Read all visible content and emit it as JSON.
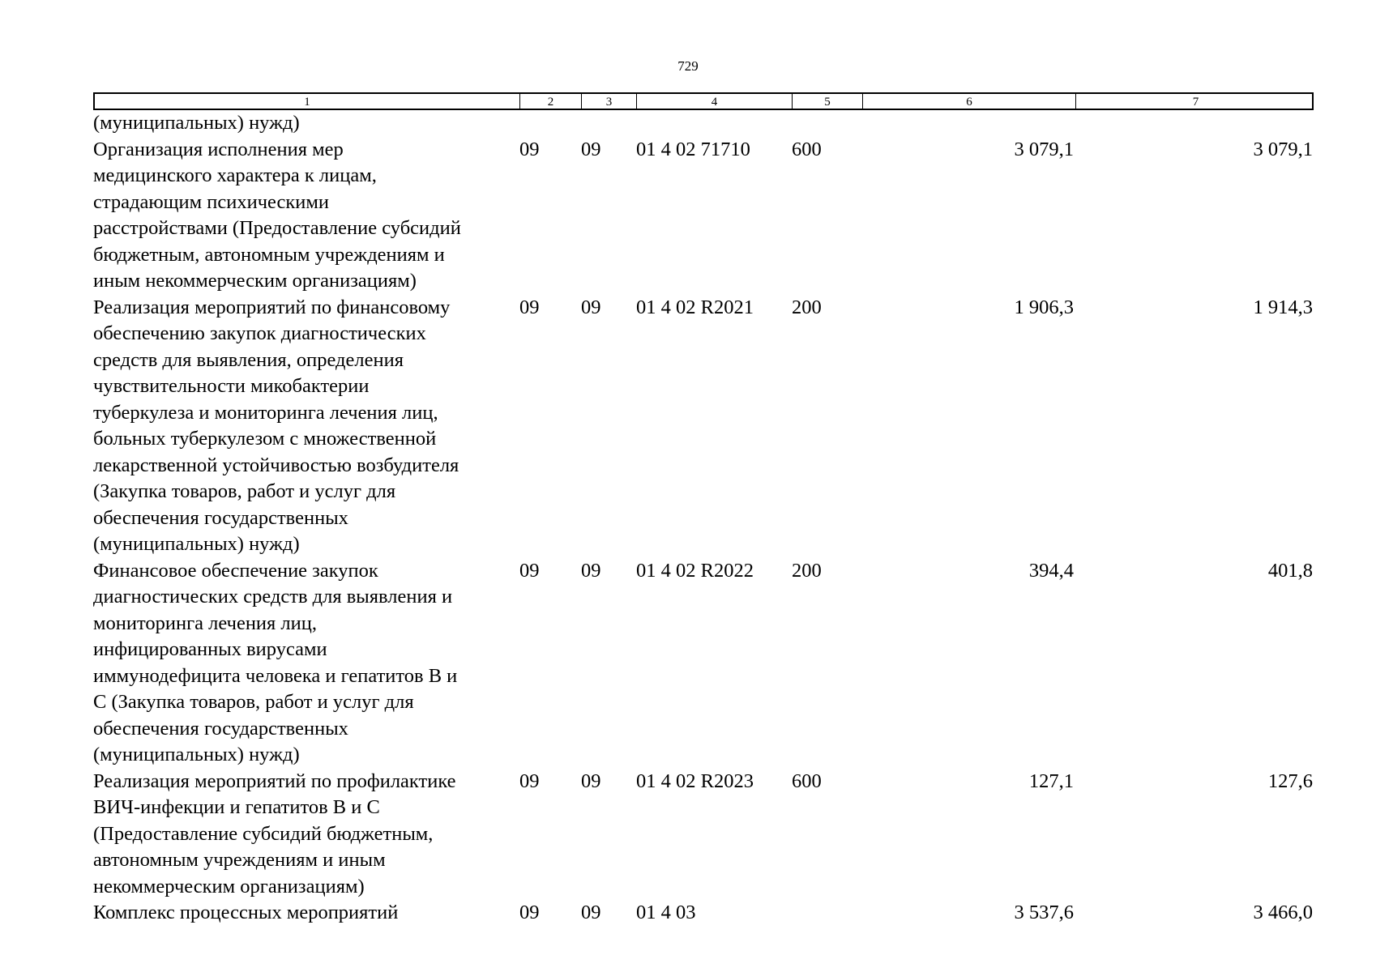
{
  "page_number": "729",
  "header": [
    "1",
    "2",
    "3",
    "4",
    "5",
    "6",
    "7"
  ],
  "rows": [
    {
      "desc": "(муниципальных) нужд)",
      "c2": "",
      "c3": "",
      "c4": "",
      "c5": "",
      "c6": "",
      "c7": ""
    },
    {
      "desc": "Организация исполнения мер\nмедицинского характера к лицам,\nстрадающим психическими\nрасстройствами (Предоставление субсидий\nбюджетным, автономным учреждениям и\nиным некоммерческим организациям)",
      "c2": "09",
      "c3": "09",
      "c4": "01 4 02 71710",
      "c5": "600",
      "c6": "3 079,1",
      "c7": "3 079,1"
    },
    {
      "desc": "Реализация мероприятий по финансовому\nобеспечению закупок диагностических\nсредств для выявления, определения\nчувствительности микобактерии\nтуберкулеза и мониторинга лечения лиц,\nбольных туберкулезом с множественной\nлекарственной устойчивостью возбудителя\n(Закупка товаров, работ и услуг для\nобеспечения государственных\n(муниципальных) нужд)",
      "c2": "09",
      "c3": "09",
      "c4": "01 4 02 R2021",
      "c5": "200",
      "c6": "1 906,3",
      "c7": "1 914,3"
    },
    {
      "desc": "Финансовое обеспечение закупок\nдиагностических средств для выявления и\nмониторинга лечения лиц,\nинфицированных вирусами\nиммунодефицита человека и гепатитов В и\nС (Закупка товаров, работ и услуг для\nобеспечения государственных\n(муниципальных) нужд)",
      "c2": "09",
      "c3": "09",
      "c4": "01 4 02 R2022",
      "c5": "200",
      "c6": "394,4",
      "c7": "401,8"
    },
    {
      "desc": "Реализация мероприятий по профилактике\nВИЧ-инфекции и гепатитов В и С\n(Предоставление субсидий бюджетным,\nавтономным учреждениям и иным\nнекоммерческим организациям)",
      "c2": "09",
      "c3": "09",
      "c4": "01 4 02 R2023",
      "c5": "600",
      "c6": "127,1",
      "c7": "127,6"
    },
    {
      "desc": "Комплекс процессных мероприятий",
      "c2": "09",
      "c3": "09",
      "c4": "01 4 03",
      "c5": "",
      "c6": "3 537,6",
      "c7": "3 466,0"
    }
  ]
}
